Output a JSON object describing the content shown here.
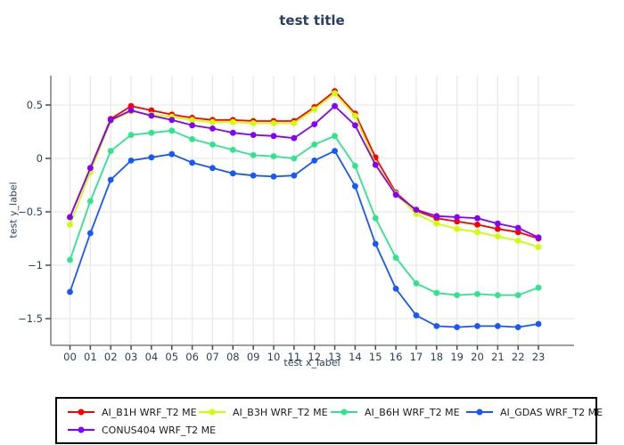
{
  "chart_data": {
    "type": "line",
    "title": "test title",
    "xlabel": "test x_label",
    "ylabel": "test y_label",
    "x": [
      "00",
      "01",
      "02",
      "03",
      "04",
      "05",
      "06",
      "07",
      "08",
      "09",
      "10",
      "11",
      "12",
      "13",
      "14",
      "15",
      "16",
      "17",
      "18",
      "19",
      "20",
      "21",
      "22",
      "23"
    ],
    "yticks": [
      0.5,
      0,
      -0.5,
      -1,
      -1.5
    ],
    "ylim": [
      -1.75,
      0.78
    ],
    "grid": true,
    "legend_position": "bottom",
    "series": [
      {
        "name": "AI_B1H WRF_T2 ME",
        "color": "#ff0000",
        "values": [
          -0.55,
          -0.09,
          0.37,
          0.49,
          0.45,
          0.41,
          0.38,
          0.36,
          0.36,
          0.35,
          0.35,
          0.35,
          0.48,
          0.63,
          0.42,
          0.01,
          -0.32,
          -0.49,
          -0.56,
          -0.59,
          -0.62,
          -0.66,
          -0.69,
          -0.75
        ]
      },
      {
        "name": "AI_B3H WRF_T2 ME",
        "color": "#ccff00",
        "values": [
          -0.62,
          -0.13,
          0.35,
          0.44,
          0.41,
          0.39,
          0.36,
          0.34,
          0.34,
          0.33,
          0.33,
          0.33,
          0.46,
          0.61,
          0.4,
          -0.05,
          -0.33,
          -0.52,
          -0.61,
          -0.66,
          -0.69,
          -0.73,
          -0.77,
          -0.83
        ]
      },
      {
        "name": "AI_B6H WRF_T2 ME",
        "color": "#2ee58c",
        "values": [
          -0.95,
          -0.4,
          0.07,
          0.22,
          0.24,
          0.26,
          0.18,
          0.13,
          0.08,
          0.03,
          0.02,
          0.0,
          0.13,
          0.21,
          -0.07,
          -0.56,
          -0.93,
          -1.17,
          -1.26,
          -1.28,
          -1.27,
          -1.28,
          -1.28,
          -1.21
        ]
      },
      {
        "name": "AI_GDAS WRF_T2 ME",
        "color": "#1757ff",
        "values": [
          -1.25,
          -0.7,
          -0.2,
          -0.02,
          0.01,
          0.04,
          -0.04,
          -0.09,
          -0.14,
          -0.16,
          -0.17,
          -0.16,
          -0.02,
          0.07,
          -0.26,
          -0.8,
          -1.22,
          -1.47,
          -1.57,
          -1.58,
          -1.57,
          -1.57,
          -1.58,
          -1.55
        ]
      },
      {
        "name": "CONUS404 WRF_T2 ME",
        "color": "#8400ff",
        "values": [
          -0.55,
          -0.09,
          0.36,
          0.45,
          0.4,
          0.36,
          0.31,
          0.28,
          0.24,
          0.22,
          0.21,
          0.19,
          0.32,
          0.49,
          0.31,
          -0.06,
          -0.34,
          -0.48,
          -0.54,
          -0.55,
          -0.56,
          -0.61,
          -0.65,
          -0.74
        ]
      }
    ]
  },
  "colors": {
    "title_text": "#2a3f5f",
    "axis_text": "#2a3f5f",
    "grid_line": "#e9e9e9",
    "axis_line": "#9e9e9e",
    "tick_mark": "#4a4a4a",
    "legend_border": "#000000",
    "background": "#ffffff"
  }
}
